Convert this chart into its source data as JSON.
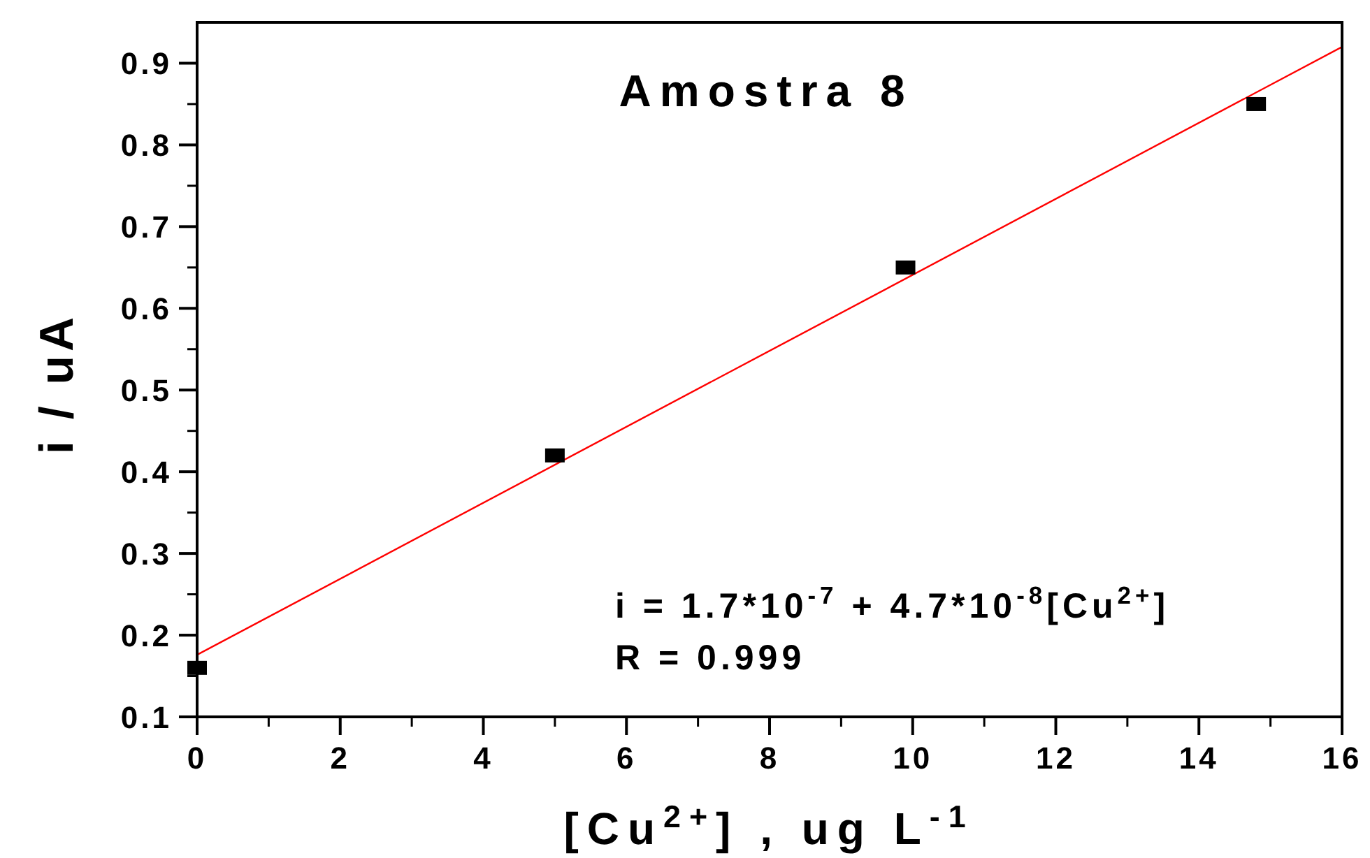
{
  "chart_data": {
    "type": "scatter",
    "title": "Amostra 8",
    "xlabel": "[Cu$^{2+}$] , ug L$^{-1}$",
    "ylabel": "i / uA",
    "annotations": [
      "i = 1.7*10$^{-7}$ + 4.7*10$^{-8}$[Cu$^{2+}$]",
      "R = 0.999"
    ],
    "series": [
      {
        "color": "#000000",
        "marker": "square",
        "x": [
          0,
          5,
          9.9,
          14.8
        ],
        "values": [
          0.16,
          0.42,
          0.65,
          0.85
        ]
      },
      {
        "type": "line",
        "color": "#ff0000",
        "x": [
          0,
          16
        ],
        "values": [
          0.176,
          0.92
        ]
      }
    ],
    "xlim": [
      0,
      16
    ],
    "xticks": [
      0,
      2,
      4,
      6,
      8,
      10,
      12,
      14,
      16
    ],
    "ylim": [
      0.1,
      0.95
    ],
    "yticks": [
      0.1,
      0.2,
      0.3,
      0.4,
      0.5,
      0.6,
      0.7,
      0.8,
      0.9
    ],
    "grid": false
  }
}
